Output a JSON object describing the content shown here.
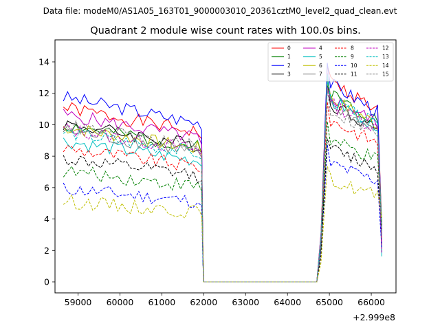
{
  "suptitle": "Data file: modeM0/AS1A05_163T01_9000003010_20361cztM0_level2_quad_clean.evt",
  "chart_data": {
    "type": "line",
    "title": "Quadrant 2 module wise count rates with 100.0s bins.",
    "xlabel": "",
    "ylabel": "",
    "x_offset_label": "+2.999e8",
    "xlim": [
      58450,
      66590
    ],
    "ylim": [
      -0.7,
      15.4
    ],
    "xticks": [
      59000,
      60000,
      61000,
      62000,
      63000,
      64000,
      65000,
      66000
    ],
    "xtick_labels": [
      "59000",
      "60000",
      "61000",
      "62000",
      "63000",
      "64000",
      "65000",
      "66000"
    ],
    "yticks": [
      0,
      2,
      4,
      6,
      8,
      10,
      12,
      14
    ],
    "ytick_labels": [
      "0",
      "2",
      "4",
      "6",
      "8",
      "10",
      "12",
      "14"
    ],
    "grid": false,
    "legend_location": "upper right",
    "legend_columns": 4,
    "gaps": {
      "seg1_x_range": [
        58650,
        61950
      ],
      "zero_x_range": [
        62000,
        64700
      ],
      "seg2_x_range": [
        64750,
        66250
      ]
    },
    "series": [
      {
        "name": "0",
        "color": "#ff0000",
        "style": "solid",
        "level1": 9.9,
        "level2": 11.9,
        "seed": 1
      },
      {
        "name": "1",
        "color": "#008000",
        "style": "solid",
        "level1": 8.9,
        "level2": 11.2,
        "seed": 2
      },
      {
        "name": "2",
        "color": "#0000ff",
        "style": "solid",
        "level1": 10.5,
        "level2": 11.8,
        "seed": 3
      },
      {
        "name": "3",
        "color": "#000000",
        "style": "solid",
        "level1": 9.0,
        "level2": 10.6,
        "seed": 4
      },
      {
        "name": "4",
        "color": "#bf00bf",
        "style": "solid",
        "level1": 9.5,
        "level2": 11.0,
        "seed": 5
      },
      {
        "name": "5",
        "color": "#00bfbf",
        "style": "solid",
        "level1": 8.0,
        "level2": 10.8,
        "seed": 6
      },
      {
        "name": "6",
        "color": "#bfbf00",
        "style": "solid",
        "level1": 8.8,
        "level2": 10.9,
        "seed": 7
      },
      {
        "name": "7",
        "color": "#808080",
        "style": "solid",
        "level1": 8.6,
        "level2": 10.5,
        "seed": 8
      },
      {
        "name": "8",
        "color": "#ff0000",
        "style": "dashed",
        "level1": 7.6,
        "level2": 9.6,
        "seed": 9
      },
      {
        "name": "9",
        "color": "#008000",
        "style": "dashed",
        "level1": 6.3,
        "level2": 8.4,
        "seed": 10
      },
      {
        "name": "10",
        "color": "#0000ff",
        "style": "dashed",
        "level1": 5.3,
        "level2": 7.0,
        "seed": 11
      },
      {
        "name": "11",
        "color": "#000000",
        "style": "dashed",
        "level1": 7.0,
        "level2": 7.9,
        "seed": 12
      },
      {
        "name": "12",
        "color": "#bf00bf",
        "style": "dashed",
        "level1": 8.7,
        "level2": 10.6,
        "seed": 13
      },
      {
        "name": "13",
        "color": "#00bfbf",
        "style": "dashed",
        "level1": 8.5,
        "level2": 10.8,
        "seed": 14
      },
      {
        "name": "14",
        "color": "#bfbf00",
        "style": "dashed",
        "level1": 4.6,
        "level2": 6.0,
        "seed": 15
      },
      {
        "name": "15",
        "color": "#808080",
        "style": "dashed",
        "level1": 8.9,
        "level2": 10.2,
        "seed": 16
      }
    ]
  }
}
